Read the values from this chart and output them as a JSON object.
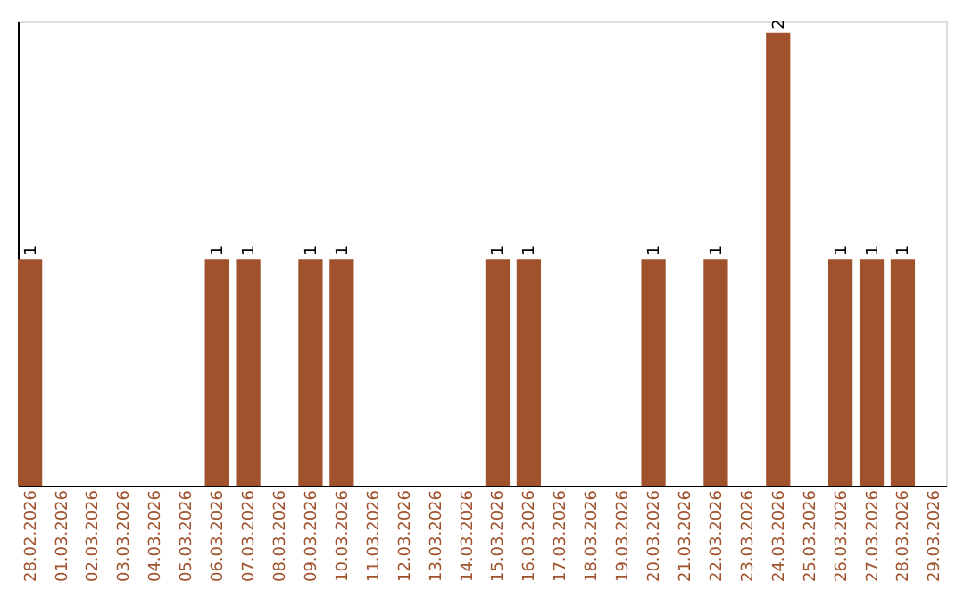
{
  "chart_data": {
    "type": "bar",
    "categories": [
      "28.02.2026",
      "01.03.2026",
      "02.03.2026",
      "03.03.2026",
      "04.03.2026",
      "05.03.2026",
      "06.03.2026",
      "07.03.2026",
      "08.03.2026",
      "09.03.2026",
      "10.03.2026",
      "11.03.2026",
      "12.03.2026",
      "13.03.2026",
      "14.03.2026",
      "15.03.2026",
      "16.03.2026",
      "17.03.2026",
      "18.03.2026",
      "19.03.2026",
      "20.03.2026",
      "21.03.2026",
      "22.03.2026",
      "23.03.2026",
      "24.03.2026",
      "25.03.2026",
      "26.03.2026",
      "27.03.2026",
      "28.03.2026",
      "29.03.2026"
    ],
    "values": [
      1,
      0,
      0,
      0,
      0,
      0,
      1,
      1,
      0,
      1,
      1,
      0,
      0,
      0,
      0,
      1,
      1,
      0,
      0,
      0,
      1,
      0,
      1,
      0,
      2,
      0,
      1,
      1,
      1,
      0
    ],
    "value_labels": [
      "1",
      null,
      null,
      null,
      null,
      null,
      "1",
      "1",
      null,
      "1",
      "1",
      null,
      null,
      null,
      null,
      "1",
      "1",
      null,
      null,
      null,
      "1",
      null,
      "1",
      null,
      "2",
      null,
      "1",
      "1",
      "1",
      null
    ],
    "color": "#a0522d",
    "ylim": [
      0,
      2.05
    ],
    "grid": false,
    "tick_labels": "x"
  }
}
